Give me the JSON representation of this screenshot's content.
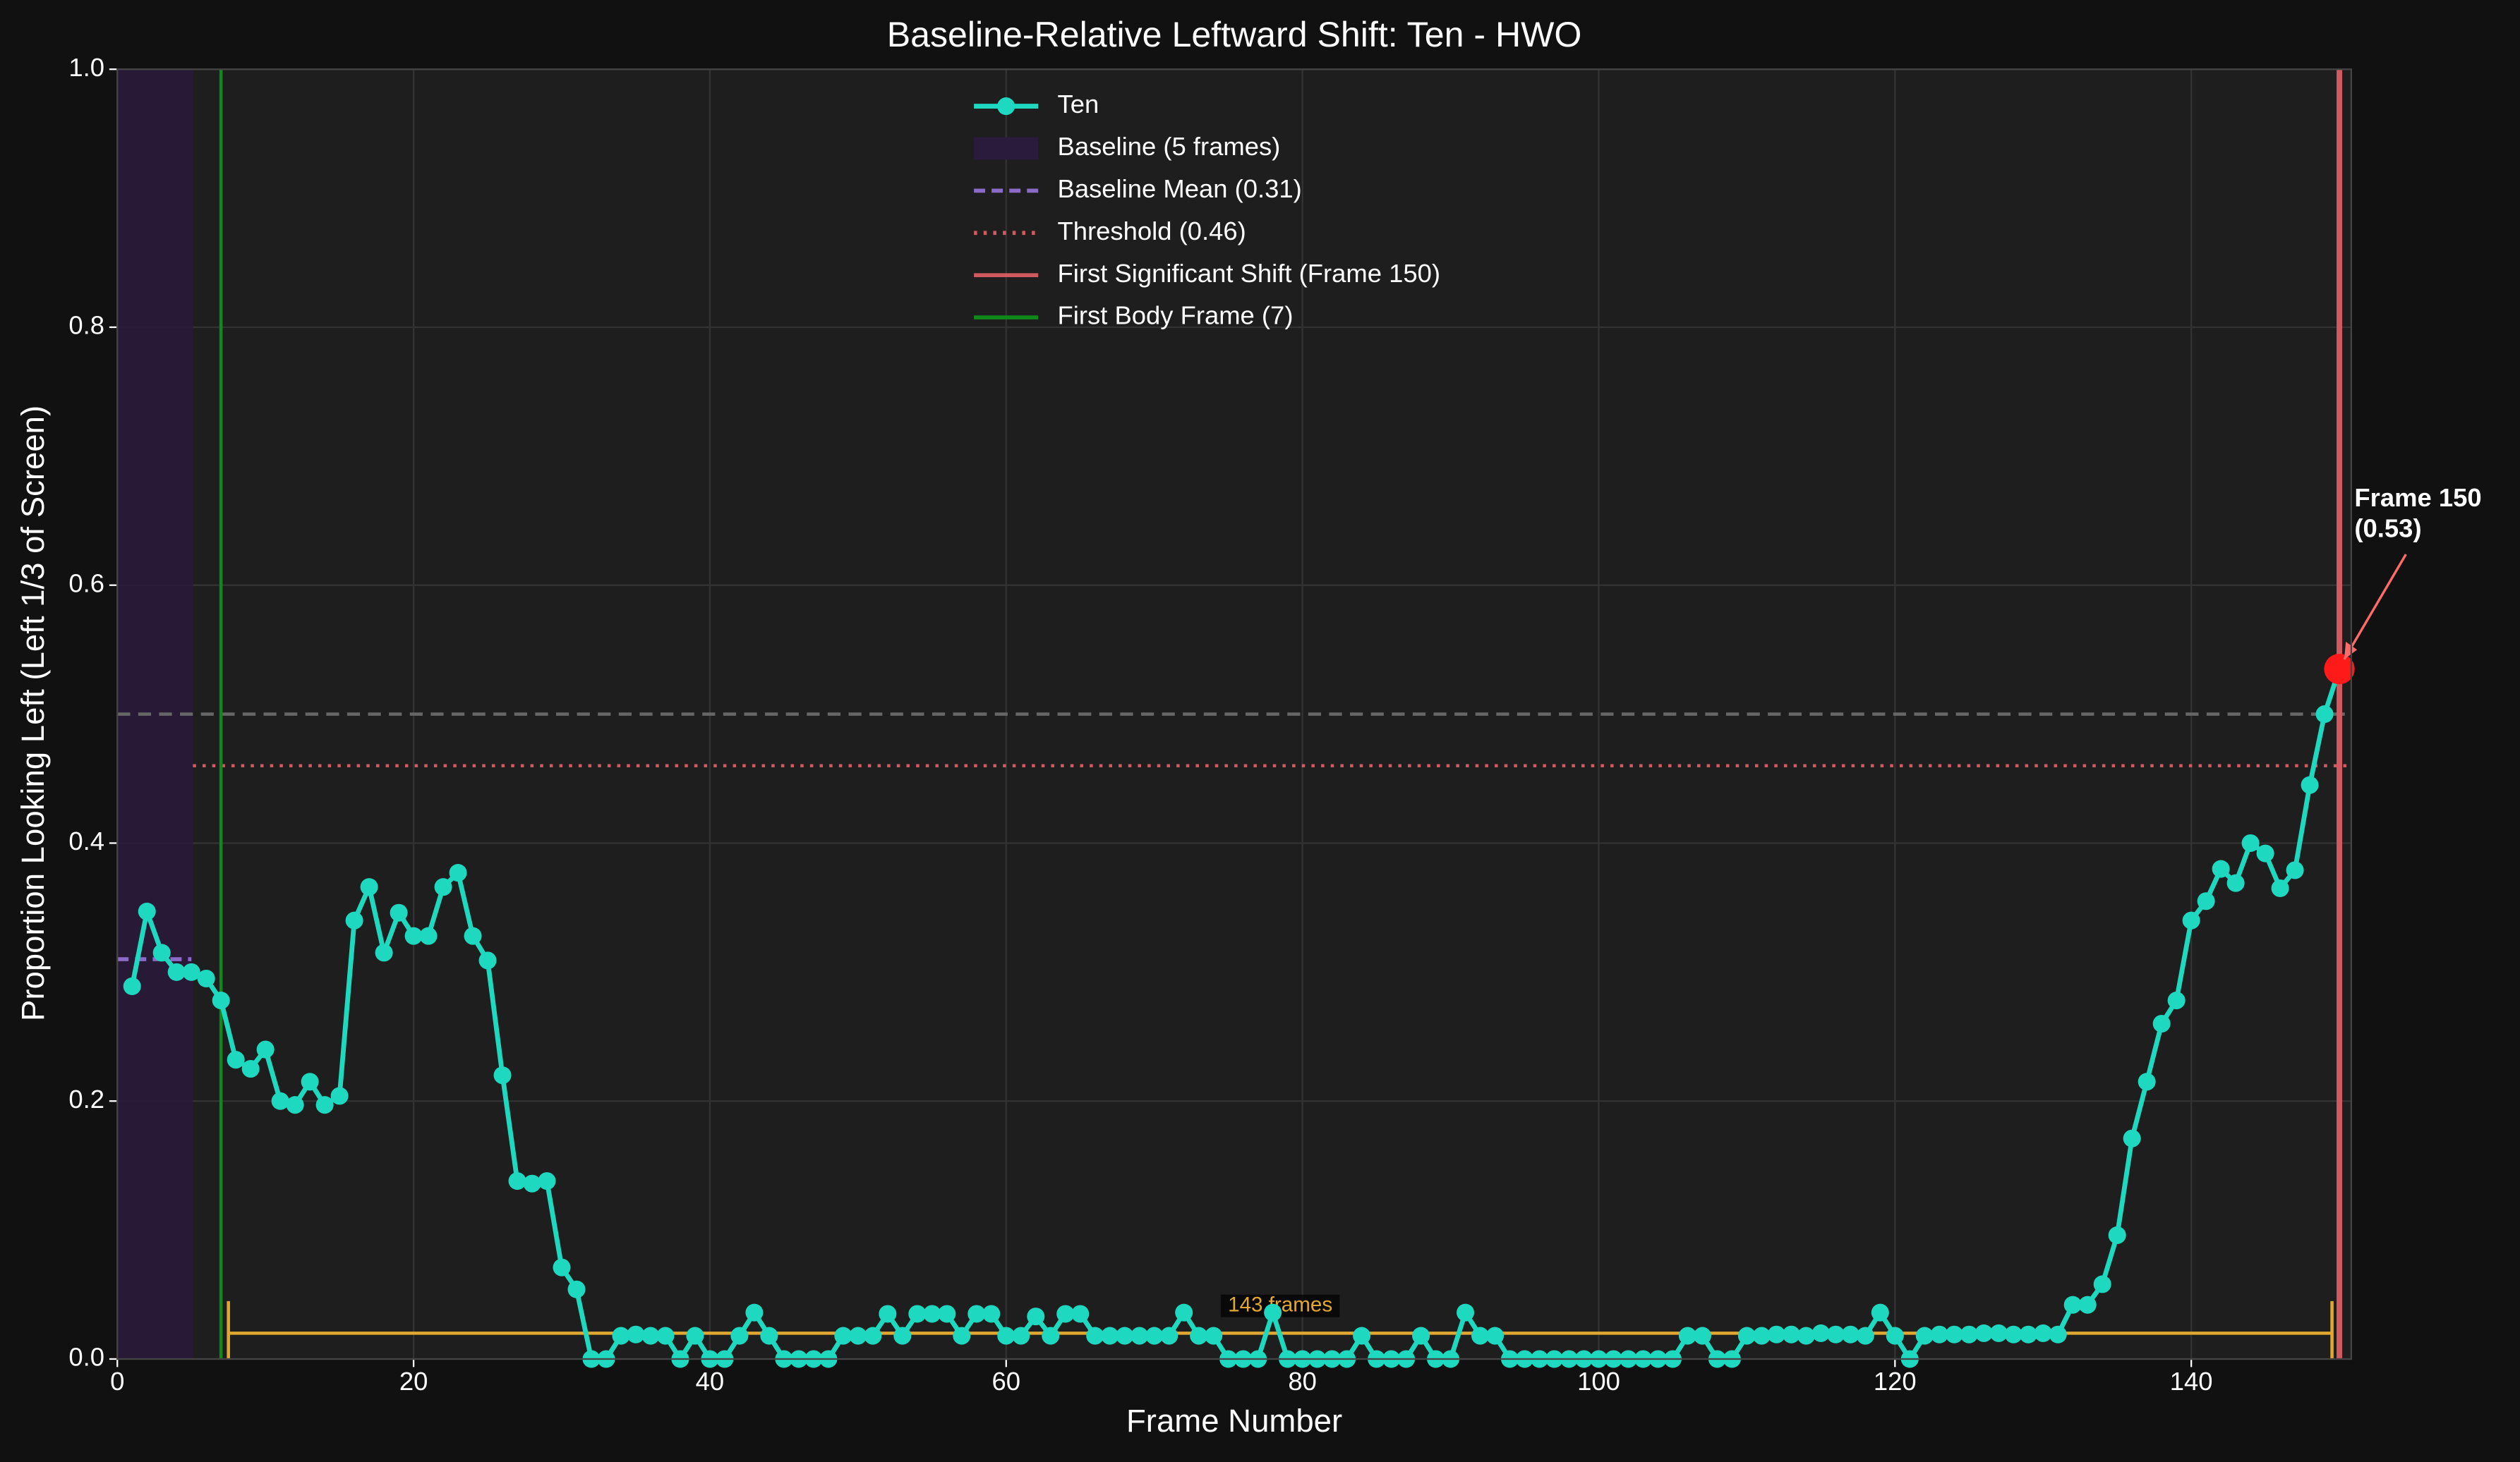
{
  "chart_data": {
    "type": "line",
    "title": "Baseline-Relative Leftward Shift: Ten - HWO",
    "xlabel": "Frame Number",
    "ylabel": "Proportion Looking Left (Left 1/3 of Screen)",
    "x": [
      1,
      2,
      3,
      4,
      5,
      6,
      7,
      8,
      9,
      10,
      11,
      12,
      13,
      14,
      15,
      16,
      17,
      18,
      19,
      20,
      21,
      22,
      23,
      24,
      25,
      26,
      27,
      28,
      29,
      30,
      31,
      32,
      33,
      34,
      35,
      36,
      37,
      38,
      39,
      40,
      41,
      42,
      43,
      44,
      45,
      46,
      47,
      48,
      49,
      50,
      51,
      52,
      53,
      54,
      55,
      56,
      57,
      58,
      59,
      60,
      61,
      62,
      63,
      64,
      65,
      66,
      67,
      68,
      69,
      70,
      71,
      72,
      73,
      74,
      75,
      76,
      77,
      78,
      79,
      80,
      81,
      82,
      83,
      84,
      85,
      86,
      87,
      88,
      89,
      90,
      91,
      92,
      93,
      94,
      95,
      96,
      97,
      98,
      99,
      100,
      101,
      102,
      103,
      104,
      105,
      106,
      107,
      108,
      109,
      110,
      111,
      112,
      113,
      114,
      115,
      116,
      117,
      118,
      119,
      120,
      121,
      122,
      123,
      124,
      125,
      126,
      127,
      128,
      129,
      130,
      131,
      132,
      133,
      134,
      135,
      136,
      137,
      138,
      139,
      140,
      141,
      142,
      143,
      144,
      145,
      146,
      147,
      148,
      149,
      150
    ],
    "series": [
      {
        "name": "Ten",
        "color": "#1fd8c0",
        "values": [
          0.289,
          0.347,
          0.315,
          0.3,
          0.3,
          0.295,
          0.278,
          0.232,
          0.225,
          0.24,
          0.2,
          0.197,
          0.215,
          0.197,
          0.204,
          0.34,
          0.366,
          0.315,
          0.346,
          0.328,
          0.328,
          0.366,
          0.377,
          0.328,
          0.309,
          0.22,
          0.138,
          0.136,
          0.138,
          0.071,
          0.054,
          0,
          0,
          0.018,
          0.019,
          0.018,
          0.018,
          0,
          0.018,
          0,
          0,
          0.018,
          0.036,
          0.018,
          0,
          0,
          0,
          0,
          0.018,
          0.018,
          0.018,
          0.035,
          0.018,
          0.035,
          0.035,
          0.035,
          0.018,
          0.035,
          0.035,
          0.018,
          0.018,
          0.033,
          0.018,
          0.035,
          0.035,
          0.018,
          0.018,
          0.018,
          0.018,
          0.018,
          0.018,
          0.036,
          0.018,
          0.018,
          0,
          0,
          0,
          0.036,
          0,
          0,
          0,
          0,
          0,
          0.018,
          0,
          0,
          0,
          0.018,
          0,
          0,
          0.036,
          0.018,
          0.018,
          0,
          0,
          0,
          0,
          0,
          0,
          0,
          0,
          0,
          0,
          0,
          0,
          0.018,
          0.018,
          0,
          0,
          0.018,
          0.018,
          0.019,
          0.019,
          0.018,
          0.02,
          0.019,
          0.019,
          0.018,
          0.036,
          0.018,
          0,
          0.018,
          0.019,
          0.019,
          0.019,
          0.02,
          0.02,
          0.019,
          0.019,
          0.02,
          0.019,
          0.042,
          0.042,
          0.058,
          0.096,
          0.171,
          0.215,
          0.26,
          0.278,
          0.34,
          0.355,
          0.38,
          0.369,
          0.4,
          0.392,
          0.365,
          0.379,
          0.445,
          0.5,
          0.535
        ]
      }
    ],
    "baseline": {
      "name": "Baseline (5 frames)",
      "span": [
        0,
        5.1
      ],
      "color": "#2a1a3c"
    },
    "baseline_mean": {
      "name": "Baseline Mean (0.31)",
      "value": 0.31,
      "span": [
        0,
        5
      ],
      "color": "#8a6cc8"
    },
    "threshold": {
      "name": "Threshold (0.46)",
      "value": 0.46,
      "start": 5.1,
      "color": "#d05a60"
    },
    "reference_line": {
      "value": 0.5,
      "color": "#666666"
    },
    "first_shift": {
      "name": "First Significant Shift (Frame 150)",
      "x": 150,
      "color": "#d05a60"
    },
    "first_body": {
      "name": "First Body Frame (7)",
      "x": 7,
      "color": "#0f8a1a"
    },
    "bracket": {
      "label": "143 frames",
      "x": [
        7.5,
        149.5
      ],
      "y": 0.02,
      "color": "#e0a830"
    },
    "annotation": [
      "Frame 150",
      "(0.53)"
    ],
    "xlim": [
      0,
      150.8
    ],
    "ylim": [
      0,
      1
    ],
    "xticks": [
      0,
      20,
      40,
      60,
      80,
      100,
      120,
      140
    ],
    "yticks": [
      {
        "value": 0,
        "label": "0.0"
      },
      0.2,
      0.4,
      0.6,
      0.8,
      {
        "value": 1,
        "label": "1.0"
      }
    ],
    "grid": true,
    "legend": "upper center"
  }
}
